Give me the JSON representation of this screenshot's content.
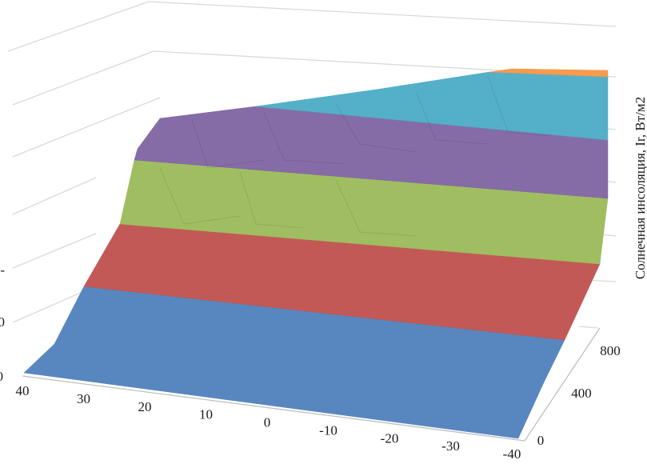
{
  "chart_data": {
    "type": "surface",
    "title": "",
    "x_axis": {
      "ticks": [
        "40",
        "30",
        "20",
        "10",
        "0",
        "-10",
        "-20",
        "-30",
        "-40"
      ],
      "values": [
        40,
        30,
        20,
        10,
        0,
        -10,
        -20,
        -30,
        -40
      ],
      "label": ""
    },
    "y_axis": {
      "ticks": [
        "0",
        "400",
        "800"
      ],
      "values": [
        0,
        400,
        800
      ],
      "label": "Солнечная инсоляция, Ir, Вт/м2"
    },
    "z_axis": {
      "partial_tick_labels": [
        "0",
        "0",
        "-"
      ],
      "range_bands": 6
    },
    "bands": [
      {
        "index": 0,
        "color": "#4f81bd"
      },
      {
        "index": 1,
        "color": "#c0504d"
      },
      {
        "index": 2,
        "color": "#9bbb59"
      },
      {
        "index": 3,
        "color": "#8064a2"
      },
      {
        "index": 4,
        "color": "#4bacc6"
      },
      {
        "index": 5,
        "color": "#f79646"
      }
    ],
    "grid": true,
    "legend": "none"
  }
}
